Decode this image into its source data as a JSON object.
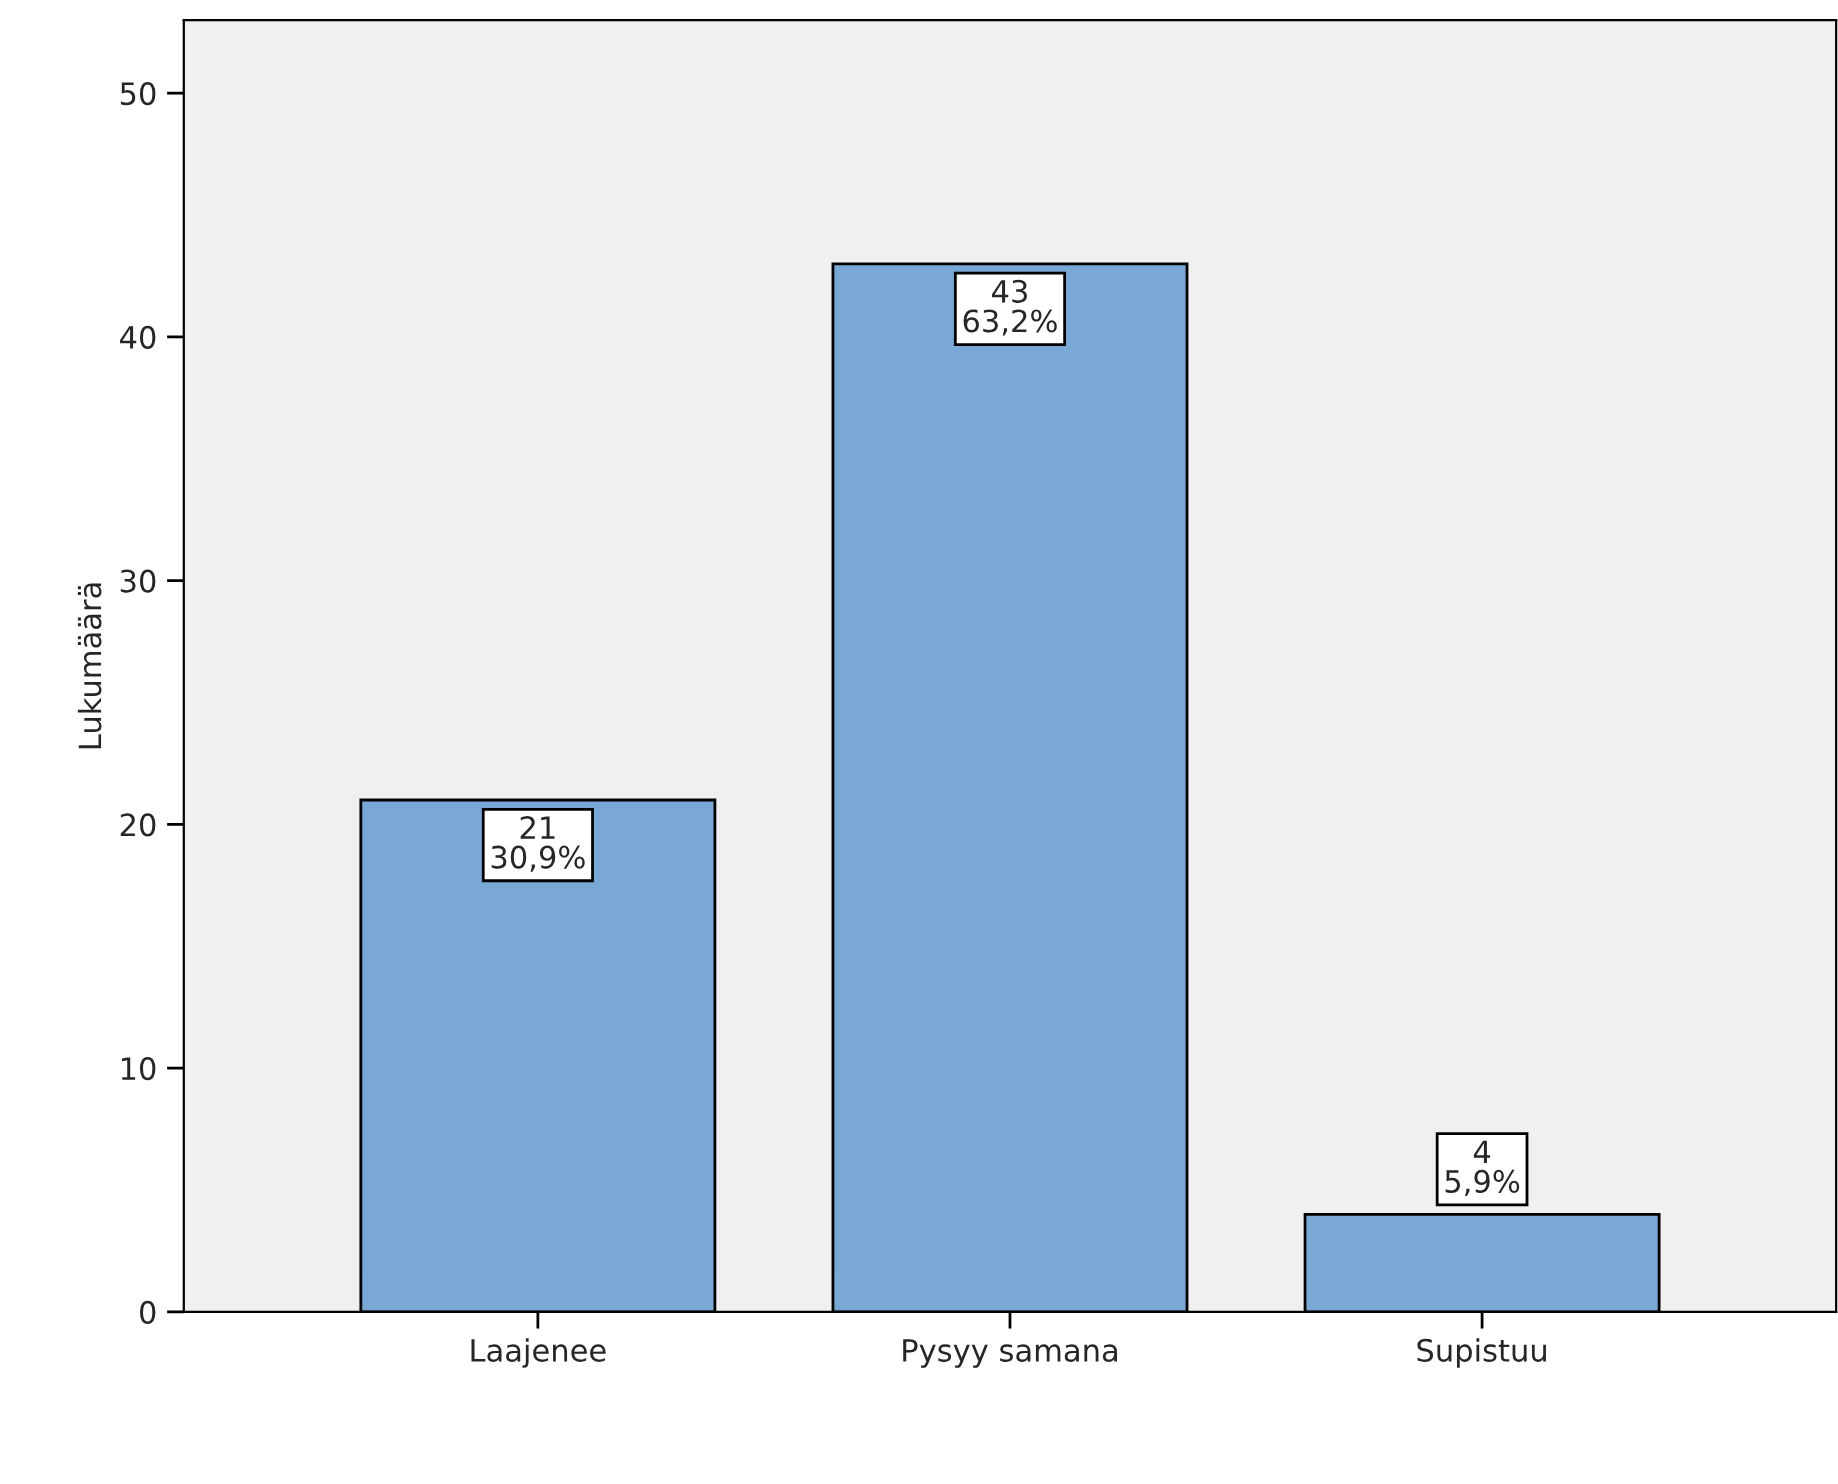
{
  "chart_data": {
    "type": "bar",
    "ylabel": "Lukumäärä",
    "categories": [
      "Laajenee",
      "Pysyy samana",
      "Supistuu"
    ],
    "values": [
      21,
      43,
      4
    ],
    "value_labels": [
      "21\n30,9%",
      "43\n63,2%",
      "4\n5,9%"
    ],
    "color": "#79a8d6",
    "ylim": [
      0,
      53
    ],
    "yticks": [
      0,
      10,
      20,
      30,
      40,
      50
    ],
    "grid": false
  }
}
